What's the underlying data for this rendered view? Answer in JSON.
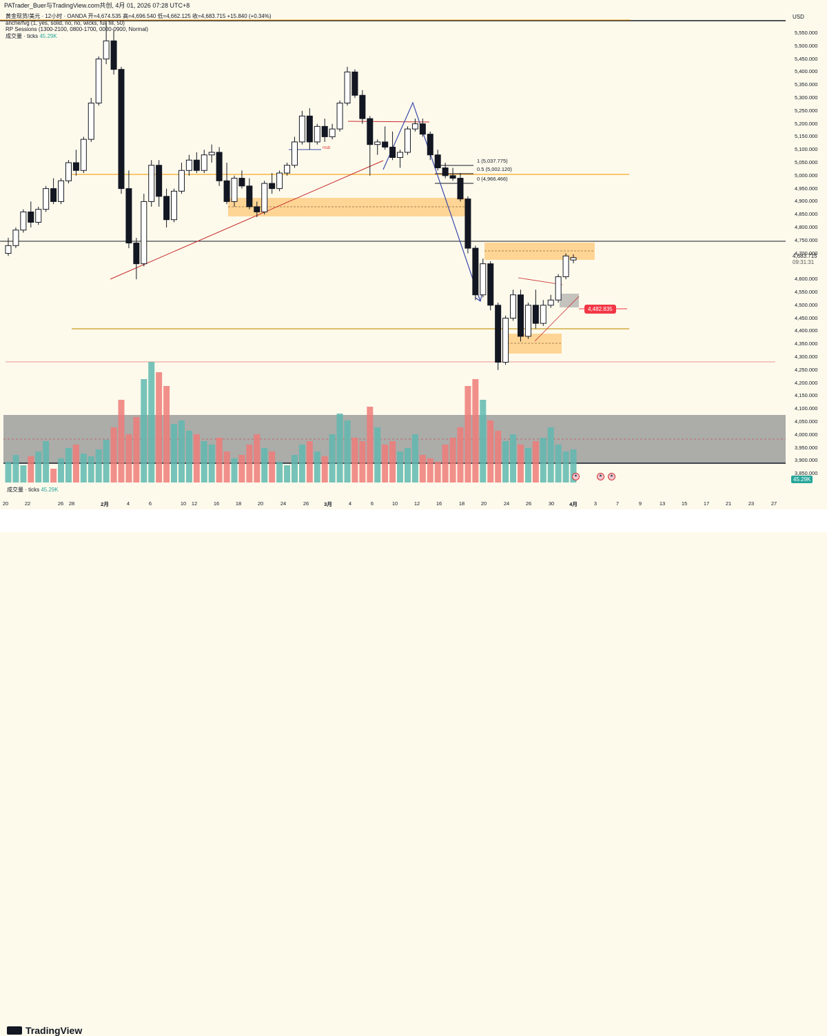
{
  "header": {
    "title": "PATrader_Buer与TradingView.com共创,  4月 01, 2026 07:28 UTC+8",
    "instrument": "黄金现货/美元 · 12小时 · OANDA",
    "ohlc": "开=4,674.535  高=4,696.540  低=4,662.125  收=4,683.715  +15.840 (+0.34%)"
  },
  "legend": {
    "line1": "anche/fvg (1, yes, solid, no, no, wicks, full fill, 50)",
    "line2": "RP Sessions (1300-2100, 0800-1700, 0000-0900, Normal)",
    "line3_label": "成交量 · ticks",
    "line3_value": "45.29K"
  },
  "price_axis": {
    "currency": "USD",
    "ticks": [
      "5,550.000",
      "5,500.000",
      "5,450.000",
      "5,400.000",
      "5,350.000",
      "5,300.000",
      "5,250.000",
      "5,200.000",
      "5,150.000",
      "5,100.000",
      "5,050.000",
      "5,000.000",
      "4,950.000",
      "4,900.000",
      "4,850.000",
      "4,800.000",
      "4,750.000",
      "4,700.000",
      "4,600.000",
      "4,550.000",
      "4,500.000",
      "4,450.000",
      "4,400.000",
      "4,350.000",
      "4,300.000",
      "4,250.000",
      "4,200.000",
      "4,150.000",
      "4,100.000",
      "4,050.000",
      "4,000.000",
      "3,950.000",
      "3,900.000",
      "3,850.000"
    ],
    "current_price": "4,683.715",
    "countdown": "09:31:31",
    "volume_badge": "45.29K"
  },
  "date_axis": {
    "ticks": [
      "20",
      "22",
      "26",
      "28",
      "2月",
      "4",
      "6",
      "10",
      "12",
      "16",
      "18",
      "20",
      "24",
      "26",
      "3月",
      "4",
      "6",
      "10",
      "12",
      "16",
      "18",
      "20",
      "24",
      "26",
      "30",
      "4月",
      "3",
      "7",
      "9",
      "13",
      "15",
      "17",
      "21",
      "23",
      "27"
    ]
  },
  "annotations": {
    "fib_1": "1 (5,037.775)",
    "fib_05": "0.5 (5,002.120)",
    "fib_0": "0 (4,966.466)",
    "msb": "msb",
    "target_price": "4,482.835"
  },
  "volume_legend": {
    "label": "成交量 · ticks",
    "value": "45.29K"
  },
  "footer": {
    "brand": "TradingView"
  },
  "colors": {
    "bull": "#26a69a",
    "bear": "#ef5350",
    "zone": "#ffcc80",
    "level": "#f5a623"
  },
  "chart_data": {
    "type": "candlestick",
    "symbol": "黄金现货/美元",
    "timeframe": "12小时",
    "y_range": [
      3850,
      5550
    ],
    "ohlc_last": {
      "open": 4674.535,
      "high": 4696.54,
      "low": 4662.125,
      "close": 4683.715,
      "change": 15.84,
      "change_pct": 0.34
    },
    "candles": [
      [
        4700,
        4760,
        4690,
        4730
      ],
      [
        4730,
        4800,
        4720,
        4790
      ],
      [
        4790,
        4870,
        4780,
        4860
      ],
      [
        4860,
        4900,
        4800,
        4820
      ],
      [
        4820,
        4880,
        4810,
        4870
      ],
      [
        4870,
        4960,
        4860,
        4950
      ],
      [
        4950,
        4990,
        4890,
        4900
      ],
      [
        4900,
        4990,
        4890,
        4980
      ],
      [
        4980,
        5060,
        4970,
        5050
      ],
      [
        5050,
        5100,
        5000,
        5020
      ],
      [
        5020,
        5150,
        5010,
        5140
      ],
      [
        5140,
        5300,
        5130,
        5280
      ],
      [
        5280,
        5460,
        5270,
        5450
      ],
      [
        5450,
        5590,
        5430,
        5520
      ],
      [
        5520,
        5560,
        5390,
        5410
      ],
      [
        5410,
        5420,
        4930,
        4950
      ],
      [
        4950,
        5020,
        4720,
        4740
      ],
      [
        4740,
        4760,
        4600,
        4660
      ],
      [
        4660,
        4930,
        4650,
        4900
      ],
      [
        4900,
        5060,
        4880,
        5040
      ],
      [
        5040,
        5060,
        4880,
        4920
      ],
      [
        4920,
        4950,
        4800,
        4830
      ],
      [
        4830,
        4950,
        4820,
        4940
      ],
      [
        4940,
        5050,
        4930,
        5020
      ],
      [
        5020,
        5080,
        5000,
        5060
      ],
      [
        5060,
        5090,
        5010,
        5020
      ],
      [
        5020,
        5100,
        5010,
        5080
      ],
      [
        5080,
        5120,
        5050,
        5090
      ],
      [
        5090,
        5110,
        4960,
        4980
      ],
      [
        4980,
        5050,
        4890,
        4900
      ],
      [
        4900,
        5000,
        4880,
        4990
      ],
      [
        4990,
        5020,
        4950,
        4960
      ],
      [
        4960,
        4990,
        4870,
        4880
      ],
      [
        4880,
        4900,
        4840,
        4860
      ],
      [
        4860,
        4980,
        4850,
        4970
      ],
      [
        4970,
        5010,
        4930,
        4950
      ],
      [
        4950,
        5020,
        4940,
        5010
      ],
      [
        5010,
        5050,
        5000,
        5040
      ],
      [
        5040,
        5150,
        5030,
        5130
      ],
      [
        5130,
        5250,
        5120,
        5230
      ],
      [
        5230,
        5260,
        5100,
        5130
      ],
      [
        5130,
        5200,
        5120,
        5190
      ],
      [
        5190,
        5220,
        5130,
        5150
      ],
      [
        5150,
        5200,
        5140,
        5180
      ],
      [
        5180,
        5290,
        5170,
        5280
      ],
      [
        5280,
        5420,
        5270,
        5400
      ],
      [
        5400,
        5410,
        5300,
        5310
      ],
      [
        5310,
        5330,
        5200,
        5220
      ],
      [
        5220,
        5230,
        5000,
        5120
      ],
      [
        5120,
        5140,
        5080,
        5130
      ],
      [
        5130,
        5190,
        5100,
        5110
      ],
      [
        5110,
        5170,
        5060,
        5070
      ],
      [
        5070,
        5100,
        5030,
        5090
      ],
      [
        5090,
        5190,
        5080,
        5180
      ],
      [
        5180,
        5220,
        5170,
        5200
      ],
      [
        5200,
        5220,
        5150,
        5160
      ],
      [
        5160,
        5170,
        5060,
        5080
      ],
      [
        5080,
        5100,
        5020,
        5030
      ],
      [
        5030,
        5050,
        4990,
        5000
      ],
      [
        5000,
        5030,
        4980,
        4990
      ],
      [
        4990,
        5010,
        4900,
        4910
      ],
      [
        4910,
        4920,
        4700,
        4720
      ],
      [
        4720,
        4730,
        4520,
        4540
      ],
      [
        4540,
        4680,
        4530,
        4660
      ],
      [
        4660,
        4670,
        4480,
        4500
      ],
      [
        4500,
        4510,
        4250,
        4280
      ],
      [
        4280,
        4460,
        4270,
        4450
      ],
      [
        4450,
        4560,
        4440,
        4540
      ],
      [
        4540,
        4560,
        4360,
        4380
      ],
      [
        4380,
        4510,
        4370,
        4500
      ],
      [
        4500,
        4560,
        4410,
        4430
      ],
      [
        4430,
        4520,
        4420,
        4500
      ],
      [
        4500,
        4540,
        4490,
        4520
      ],
      [
        4520,
        4620,
        4510,
        4610
      ],
      [
        4610,
        4700,
        4600,
        4690
      ],
      [
        4674.535,
        4696.54,
        4662.125,
        4683.715
      ]
    ],
    "levels": [
      4990,
      4395,
      4740
    ],
    "volume_last": "45.29K"
  }
}
